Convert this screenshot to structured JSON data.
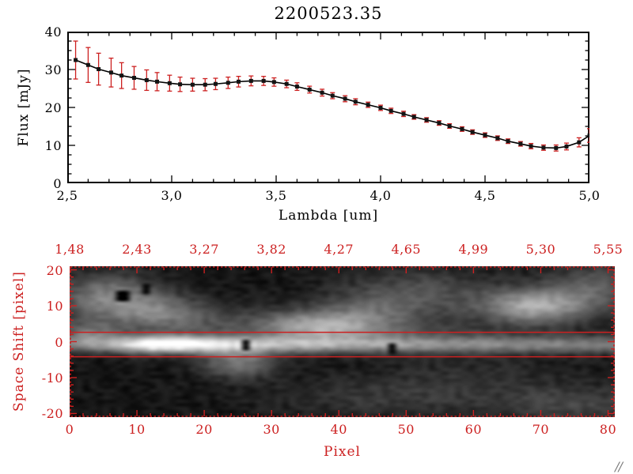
{
  "title": "2200523.35",
  "colors": {
    "background": "#ffffff",
    "frame_black": "#000000",
    "accent_red": "#cc2020",
    "marker_black": "#141414"
  },
  "decorations": {
    "corner_mark": "//"
  },
  "chart_data": [
    {
      "type": "line",
      "title": "2200523.35",
      "xlabel": "Lambda [um]",
      "ylabel": "Flux [mJy]",
      "xlim": [
        2.5,
        5.0
      ],
      "ylim": [
        0,
        40
      ],
      "x_ticks": [
        2.5,
        3.0,
        3.5,
        4.0,
        4.5,
        5.0
      ],
      "x_tick_labels": [
        "2,5",
        "3,0",
        "3,5",
        "4,0",
        "4,5",
        "5,0"
      ],
      "y_ticks": [
        0,
        10,
        20,
        30,
        40
      ],
      "y_tick_labels": [
        "0",
        "10",
        "20",
        "30",
        "40"
      ],
      "grid": false,
      "marker": "filled-square",
      "line_color": "#000000",
      "error_bar_color": "#cc2020",
      "x": [
        2.54,
        2.6,
        2.65,
        2.71,
        2.76,
        2.82,
        2.88,
        2.93,
        2.99,
        3.04,
        3.1,
        3.16,
        3.21,
        3.27,
        3.32,
        3.38,
        3.44,
        3.49,
        3.55,
        3.6,
        3.66,
        3.72,
        3.77,
        3.83,
        3.88,
        3.94,
        4.0,
        4.05,
        4.11,
        4.16,
        4.22,
        4.28,
        4.33,
        4.39,
        4.44,
        4.5,
        4.56,
        4.61,
        4.67,
        4.72,
        4.78,
        4.84,
        4.89,
        4.95,
        5.0
      ],
      "flux": [
        32.5,
        31.2,
        30.1,
        29.2,
        28.4,
        27.8,
        27.2,
        26.8,
        26.4,
        26.1,
        26.0,
        26.0,
        26.2,
        26.5,
        26.8,
        27.0,
        27.0,
        26.7,
        26.2,
        25.5,
        24.7,
        23.9,
        23.1,
        22.3,
        21.5,
        20.7,
        19.9,
        19.1,
        18.3,
        17.5,
        16.7,
        15.9,
        15.1,
        14.3,
        13.5,
        12.7,
        11.9,
        11.1,
        10.4,
        9.8,
        9.4,
        9.3,
        9.7,
        10.8,
        12.6
      ],
      "err": [
        5.0,
        4.6,
        4.2,
        3.8,
        3.4,
        3.0,
        2.7,
        2.4,
        2.1,
        1.9,
        1.7,
        1.6,
        1.5,
        1.5,
        1.4,
        1.3,
        1.2,
        1.1,
        1.0,
        1.0,
        0.9,
        0.9,
        0.8,
        0.8,
        0.8,
        0.7,
        0.7,
        0.7,
        0.7,
        0.6,
        0.6,
        0.6,
        0.6,
        0.6,
        0.6,
        0.6,
        0.6,
        0.6,
        0.6,
        0.7,
        0.7,
        0.8,
        0.9,
        1.2,
        1.8
      ]
    },
    {
      "type": "heatmap",
      "xlabel": "Pixel",
      "ylabel": "Space Shift [pixel]",
      "colormap": "grayscale",
      "axis_color": "#cc2020",
      "x_range": [
        0,
        81
      ],
      "y_range": [
        -21,
        21
      ],
      "x_ticks": [
        0,
        10,
        20,
        30,
        40,
        50,
        60,
        70,
        80
      ],
      "x_tick_labels": [
        "0",
        "10",
        "20",
        "30",
        "40",
        "50",
        "60",
        "70",
        "80"
      ],
      "y_ticks": [
        20,
        10,
        0,
        -10,
        -20
      ],
      "y_tick_labels": [
        "20",
        "10",
        "0",
        "-10",
        "-20"
      ],
      "top_axis_positions": [
        0,
        10,
        20,
        30,
        40,
        50,
        60,
        70,
        80
      ],
      "top_axis_labels": [
        "1,48",
        "2,43",
        "3,27",
        "3,82",
        "4,27",
        "4,65",
        "4,99",
        "5,30",
        "5,55"
      ],
      "aperture_lines_y": [
        2.6,
        -4.2
      ],
      "image_model": {
        "background": 0.08,
        "noise_amp": 0.055,
        "trace": {
          "y_center": -0.8,
          "sigma_y": 1.7,
          "profile_x": [
            0,
            5,
            9,
            12,
            15,
            18,
            22,
            26,
            32,
            40,
            50,
            60,
            70,
            81
          ],
          "profile_amp": [
            0.3,
            0.45,
            0.8,
            1.0,
            1.0,
            0.92,
            0.74,
            0.62,
            0.56,
            0.52,
            0.48,
            0.44,
            0.42,
            0.4
          ]
        },
        "blobs": [
          {
            "x": 5,
            "y": 13,
            "sx": 5,
            "sy": 4.5,
            "a": 0.4
          },
          {
            "x": 13,
            "y": 9,
            "sx": 5,
            "sy": 3.5,
            "a": 0.3
          },
          {
            "x": 20,
            "y": 5,
            "sx": 12,
            "sy": 3.5,
            "a": 0.18
          },
          {
            "x": 2,
            "y": 2,
            "sx": 3,
            "sy": 2.5,
            "a": 0.3
          },
          {
            "x": 37,
            "y": 4.5,
            "sx": 6,
            "sy": 3,
            "a": 0.45
          },
          {
            "x": 45,
            "y": 8,
            "sx": 6,
            "sy": 4,
            "a": 0.22
          },
          {
            "x": 52,
            "y": 14,
            "sx": 8,
            "sy": 5,
            "a": 0.22
          },
          {
            "x": 50,
            "y": 3,
            "sx": 12,
            "sy": 2,
            "a": 0.12
          },
          {
            "x": 69,
            "y": 10,
            "sx": 5.5,
            "sy": 3.5,
            "a": 0.55
          },
          {
            "x": 78,
            "y": 15,
            "sx": 5,
            "sy": 5,
            "a": 0.28
          },
          {
            "x": 25,
            "y": -6,
            "sx": 4,
            "sy": 3,
            "a": 0.38
          },
          {
            "x": 47,
            "y": -16,
            "sx": 12,
            "sy": 4,
            "a": 0.13
          },
          {
            "x": 75,
            "y": -18,
            "sx": 8,
            "sy": 4,
            "a": 0.18
          },
          {
            "x": 60,
            "y": -9,
            "sx": 10,
            "sy": 5,
            "a": 0.08
          }
        ],
        "dark_spots": [
          {
            "x": 7.5,
            "y": 13
          },
          {
            "x": 11,
            "y": 15
          },
          {
            "x": 26,
            "y": -1
          },
          {
            "x": 48,
            "y": -2
          }
        ]
      }
    }
  ]
}
